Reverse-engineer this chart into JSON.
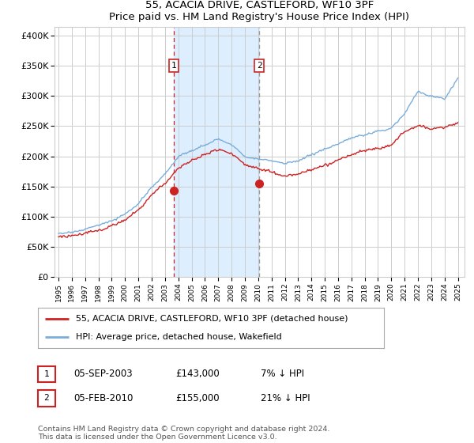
{
  "title": "55, ACACIA DRIVE, CASTLEFORD, WF10 3PF",
  "subtitle": "Price paid vs. HM Land Registry's House Price Index (HPI)",
  "ylabel_ticks": [
    "£0",
    "£50K",
    "£100K",
    "£150K",
    "£200K",
    "£250K",
    "£300K",
    "£350K",
    "£400K"
  ],
  "ytick_values": [
    0,
    50000,
    100000,
    150000,
    200000,
    250000,
    300000,
    350000,
    400000
  ],
  "ylim": [
    0,
    415000
  ],
  "xlim_start": 1994.7,
  "xlim_end": 2025.5,
  "hpi_color": "#7aadda",
  "price_color": "#cc2222",
  "marker_color": "#cc2222",
  "transaction1": {
    "date": 2003.67,
    "price": 143000,
    "label": "1",
    "text": "05-SEP-2003",
    "price_str": "£143,000",
    "pct": "7% ↓ HPI"
  },
  "transaction2": {
    "date": 2010.08,
    "price": 155000,
    "label": "2",
    "text": "05-FEB-2010",
    "price_str": "£155,000",
    "pct": "21% ↓ HPI"
  },
  "legend_line1": "55, ACACIA DRIVE, CASTLEFORD, WF10 3PF (detached house)",
  "legend_line2": "HPI: Average price, detached house, Wakefield",
  "footer": "Contains HM Land Registry data © Crown copyright and database right 2024.\nThis data is licensed under the Open Government Licence v3.0.",
  "bg_color": "#ffffff",
  "grid_color": "#cccccc",
  "shade_color": "#ddeeff"
}
